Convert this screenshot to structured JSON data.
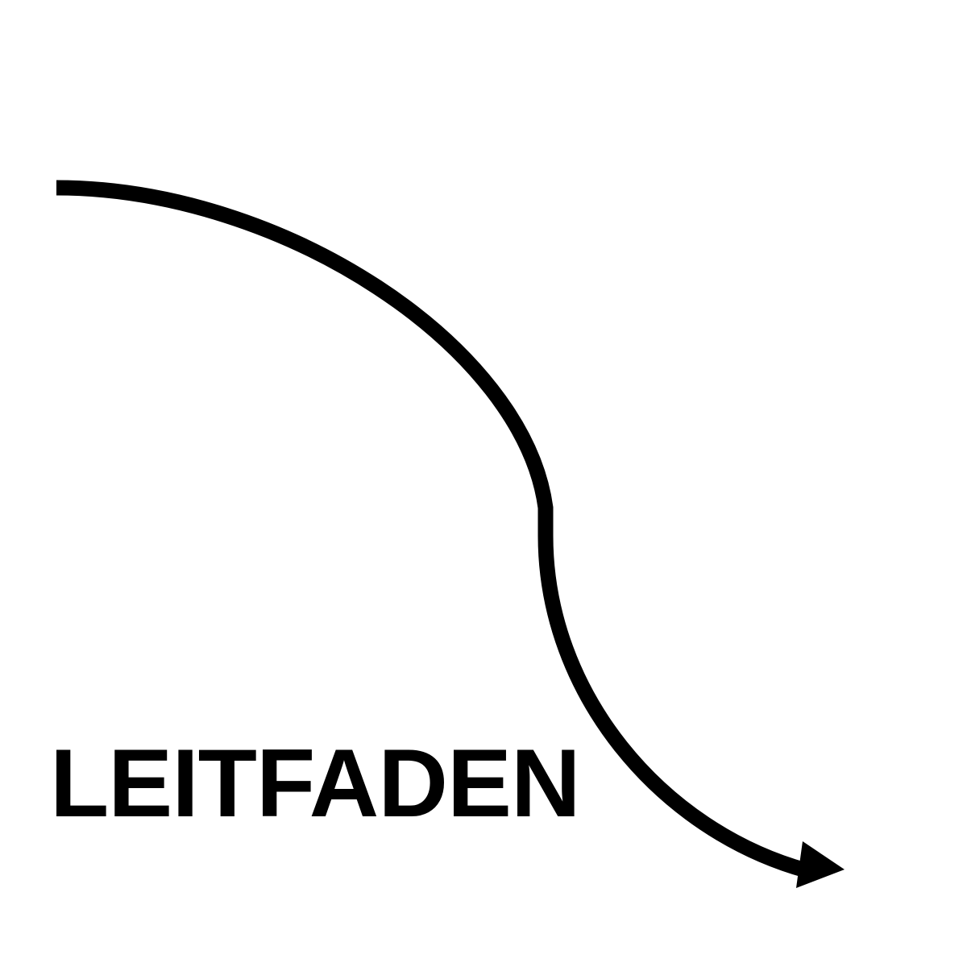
{
  "title": "LEITFADEN",
  "arrow": {
    "icon": "curved-arrow-icon",
    "color": "#000000"
  },
  "text_color": "#000000",
  "background_color": "#ffffff"
}
